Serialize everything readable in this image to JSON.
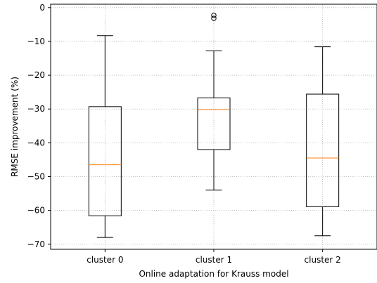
{
  "chart_data": {
    "type": "box",
    "title": "",
    "xlabel": "Online adaptation for Krauss model",
    "ylabel": "RMSE improvement (%)",
    "ylim": [
      -71.5,
      1.0
    ],
    "yticks": [
      0,
      -10,
      -20,
      -30,
      -40,
      -50,
      -60,
      -70
    ],
    "ytick_labels": [
      "0",
      "−10",
      "−20",
      "−30",
      "−40",
      "−50",
      "−60",
      "−70"
    ],
    "grid": true,
    "categories": [
      "cluster 0",
      "cluster 1",
      "cluster 2"
    ],
    "boxes": [
      {
        "whisker_low": -68.0,
        "q1": -61.6,
        "median": -46.5,
        "q3": -29.3,
        "whisker_high": -8.3,
        "outliers": []
      },
      {
        "whisker_low": -54.0,
        "q1": -42.0,
        "median": -30.2,
        "q3": -26.7,
        "whisker_high": -12.8,
        "outliers": [
          -2.3,
          -3.2
        ]
      },
      {
        "whisker_low": -67.5,
        "q1": -58.9,
        "median": -44.5,
        "q3": -25.6,
        "whisker_high": -11.6,
        "outliers": []
      }
    ],
    "colors": {
      "box": "#000000",
      "median": "#ff7f0e",
      "grid": "#b0b0b0",
      "outlier": "#000000"
    }
  }
}
